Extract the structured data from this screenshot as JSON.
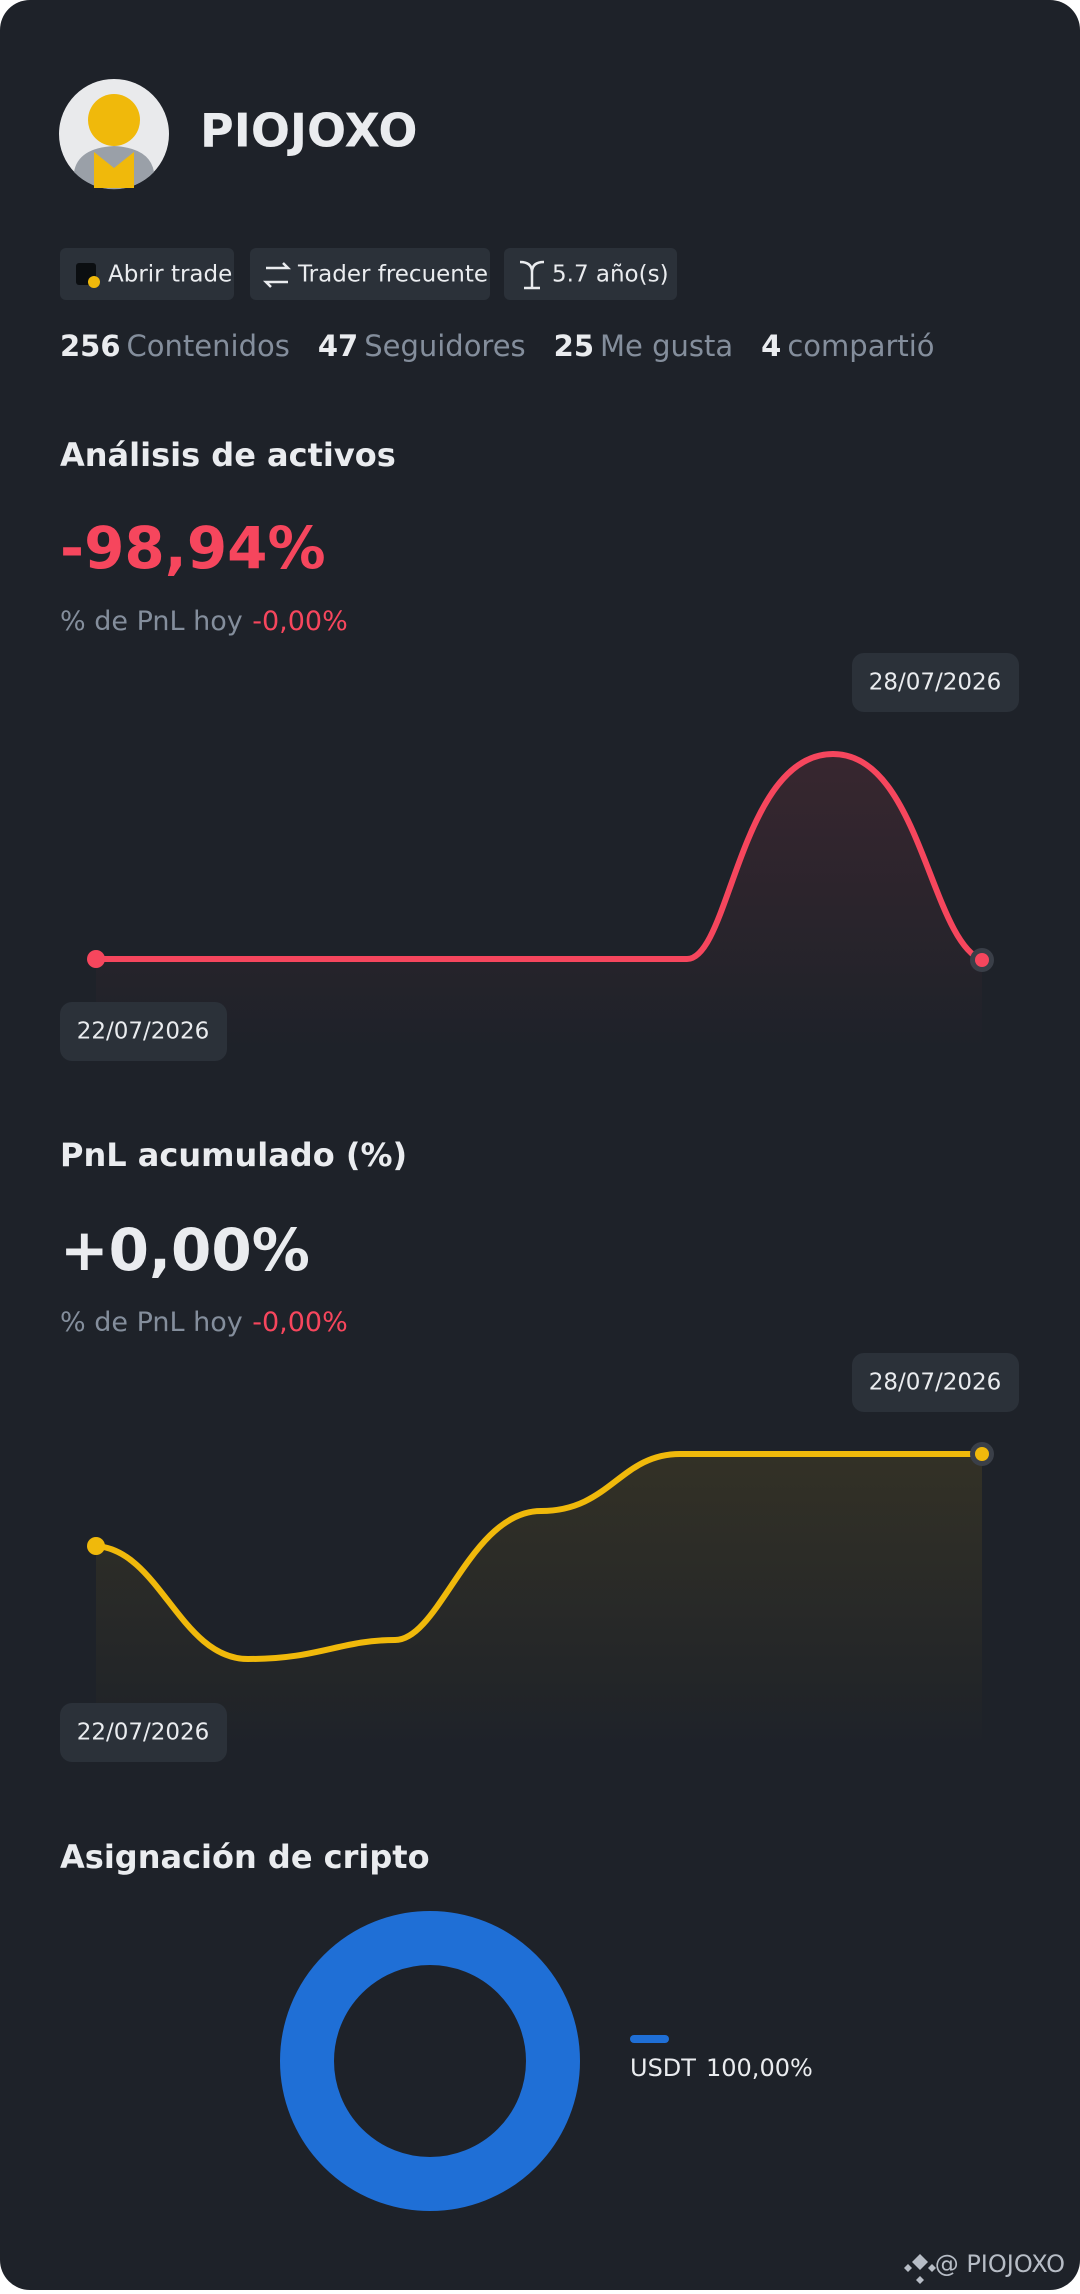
{
  "header": {
    "name": "PIOJOXO"
  },
  "badges": [
    "Abrir trade",
    "Trader frecuente",
    "5.7 año(s)"
  ],
  "stats": [
    {
      "value": 256,
      "label": "Contenidos"
    },
    {
      "value": 47,
      "label": "Seguidores"
    },
    {
      "value": 25,
      "label": "Me gusta"
    },
    {
      "value": 4,
      "label": "compartió"
    }
  ],
  "asset_analysis": {
    "title": "Análisis de activos",
    "value": "-98,94%",
    "pnl_label": "% de PnL hoy",
    "pnl_value": "-0,00%",
    "start_date": "22/07/2026",
    "end_date": "28/07/2026"
  },
  "cumulative_pnl": {
    "title": "PnL acumulado (%)",
    "value": "+0,00%",
    "pnl_label": "% de PnL hoy",
    "pnl_value": "-0,00%",
    "start_date": "22/07/2026",
    "end_date": "28/07/2026"
  },
  "chart_data": {
    "type": "pie",
    "title": "Asignación de cripto",
    "categories": [
      "USDT"
    ],
    "values": [
      100
    ],
    "value_labels": [
      "100,00%"
    ],
    "colors": [
      "#1f6fd6"
    ]
  },
  "watermark": "@ PIOJOXO"
}
